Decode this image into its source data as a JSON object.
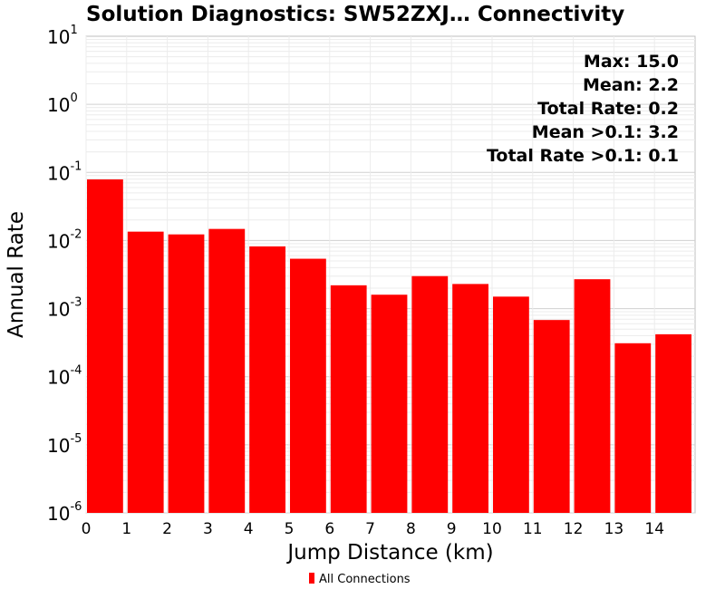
{
  "chart_data": {
    "type": "bar",
    "title": "Solution Diagnostics: SW52ZXJ… Connectivity",
    "xlabel": "Jump Distance (km)",
    "ylabel": "Annual Rate",
    "y_scale": "log",
    "ylim": [
      1e-06,
      10
    ],
    "xlim": [
      0,
      15
    ],
    "x_ticks": [
      "0",
      "1",
      "2",
      "3",
      "4",
      "5",
      "6",
      "7",
      "8",
      "9",
      "10",
      "11",
      "12",
      "13",
      "14"
    ],
    "y_ticks": [
      {
        "base": "10",
        "exp": "1",
        "value": 10
      },
      {
        "base": "10",
        "exp": "0",
        "value": 1
      },
      {
        "base": "10",
        "exp": "-1",
        "value": 0.1
      },
      {
        "base": "10",
        "exp": "-2",
        "value": 0.01
      },
      {
        "base": "10",
        "exp": "-3",
        "value": 0.001
      },
      {
        "base": "10",
        "exp": "-4",
        "value": 0.0001
      },
      {
        "base": "10",
        "exp": "-5",
        "value": 1e-05
      },
      {
        "base": "10",
        "exp": "-6",
        "value": 1e-06
      }
    ],
    "grid": true,
    "bars": [
      {
        "x0": 0,
        "x1": 1,
        "value": 0.079
      },
      {
        "x0": 1,
        "x1": 2,
        "value": 0.0135
      },
      {
        "x0": 2,
        "x1": 3,
        "value": 0.0123
      },
      {
        "x0": 3,
        "x1": 4,
        "value": 0.0148
      },
      {
        "x0": 4,
        "x1": 5,
        "value": 0.0082
      },
      {
        "x0": 5,
        "x1": 6,
        "value": 0.0054
      },
      {
        "x0": 6,
        "x1": 7,
        "value": 0.0022
      },
      {
        "x0": 7,
        "x1": 8,
        "value": 0.0016
      },
      {
        "x0": 8,
        "x1": 9,
        "value": 0.003
      },
      {
        "x0": 9,
        "x1": 10,
        "value": 0.0023
      },
      {
        "x0": 10,
        "x1": 11,
        "value": 0.0015
      },
      {
        "x0": 11,
        "x1": 12,
        "value": 0.00068
      },
      {
        "x0": 12,
        "x1": 13,
        "value": 0.0027
      },
      {
        "x0": 13,
        "x1": 14,
        "value": 0.00031
      },
      {
        "x0": 14,
        "x1": 15,
        "value": 0.00042
      }
    ],
    "series": [
      {
        "name": "All Connections",
        "color": "#ff0000"
      }
    ],
    "annotations": [
      "Max: 15.0",
      "Mean: 2.2",
      "Total Rate: 0.2",
      "Mean >0.1: 3.2",
      "Total Rate >0.1: 0.1"
    ],
    "annotation_position": "top-right",
    "legend_position": "bottom-center"
  }
}
